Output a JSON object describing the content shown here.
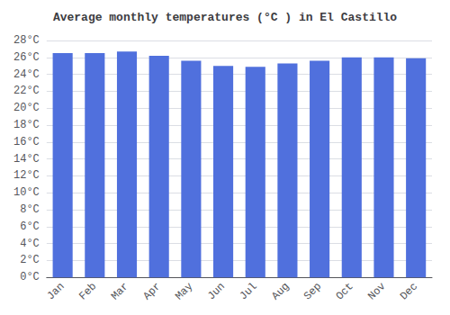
{
  "chart_data": {
    "type": "bar",
    "title": "Average monthly temperatures (°C ) in El Castillo",
    "categories": [
      "Jan",
      "Feb",
      "Mar",
      "Apr",
      "May",
      "Jun",
      "Jul",
      "Aug",
      "Sep",
      "Oct",
      "Nov",
      "Dec"
    ],
    "values": [
      26.5,
      26.5,
      26.7,
      26.2,
      25.6,
      25.0,
      24.9,
      25.3,
      25.6,
      26.0,
      26.0,
      25.9
    ],
    "ylim": [
      0,
      28
    ],
    "yticks": [
      {
        "value": 0,
        "label": "0°C"
      },
      {
        "value": 2,
        "label": "2°C"
      },
      {
        "value": 4,
        "label": "4°C"
      },
      {
        "value": 6,
        "label": "6°C"
      },
      {
        "value": 8,
        "label": "8°C"
      },
      {
        "value": 10,
        "label": "10°C"
      },
      {
        "value": 12,
        "label": "12°C"
      },
      {
        "value": 14,
        "label": "14°C"
      },
      {
        "value": 16,
        "label": "16°C"
      },
      {
        "value": 18,
        "label": "18°C"
      },
      {
        "value": 20,
        "label": "20°C"
      },
      {
        "value": 22,
        "label": "22°C"
      },
      {
        "value": 24,
        "label": "24°C"
      },
      {
        "value": 26,
        "label": "26°C"
      },
      {
        "value": 28,
        "label": "28°C"
      }
    ],
    "grid": true
  }
}
